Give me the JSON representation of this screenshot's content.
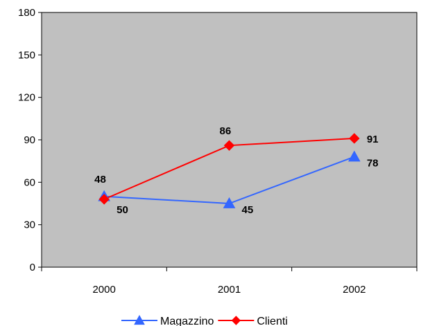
{
  "chart_data": {
    "type": "line",
    "categories": [
      "2000",
      "2001",
      "2002"
    ],
    "series": [
      {
        "name": "Magazzino",
        "values": [
          50,
          45,
          78
        ],
        "color": "#3366FF",
        "marker": "triangle"
      },
      {
        "name": "Clienti",
        "values": [
          48,
          86,
          91
        ],
        "color": "#FF0000",
        "marker": "diamond"
      }
    ],
    "ylim": [
      0,
      180
    ],
    "yticks": [
      0,
      30,
      60,
      90,
      120,
      150,
      180
    ],
    "plot_background": "#C0C0C0",
    "grid": false,
    "legend_position": "bottom"
  }
}
